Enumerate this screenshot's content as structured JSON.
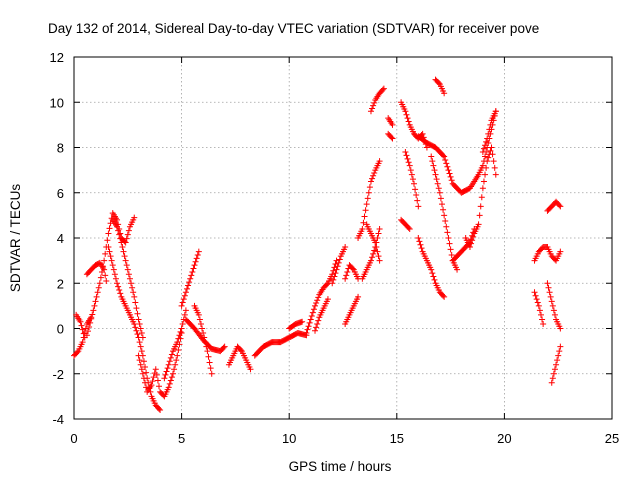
{
  "chart_data": {
    "type": "scatter",
    "title": "Day 132 of 2014, Sidereal Day-to-day VTEC variation (SDTVAR) for receiver pove",
    "xlabel": "GPS time / hours",
    "ylabel": "SDTVAR / TECUs",
    "xlim": [
      0,
      25
    ],
    "ylim": [
      -4,
      12
    ],
    "xticks": [
      0,
      5,
      10,
      15,
      20,
      25
    ],
    "yticks": [
      -4,
      -2,
      0,
      2,
      4,
      6,
      8,
      10,
      12
    ],
    "grid": true,
    "marker": "+",
    "marker_color": "#ff0000",
    "tracks": [
      {
        "x": [
          0.0,
          0.2,
          0.4,
          0.6,
          0.8
        ],
        "y": [
          -1.2,
          -1.0,
          -0.6,
          0.2,
          0.5
        ]
      },
      {
        "x": [
          0.1,
          0.3,
          0.5
        ],
        "y": [
          0.6,
          0.3,
          -0.4
        ]
      },
      {
        "x": [
          0.6,
          0.9,
          1.2,
          1.4,
          1.6,
          1.8,
          2.0,
          2.2,
          2.4,
          2.6,
          2.8
        ],
        "y": [
          -0.3,
          0.8,
          2.0,
          3.0,
          4.2,
          5.1,
          4.8,
          4.0,
          3.8,
          4.5,
          4.9
        ]
      },
      {
        "x": [
          0.6,
          0.8,
          1.0,
          1.2,
          1.4,
          1.5
        ],
        "y": [
          2.4,
          2.6,
          2.8,
          2.9,
          2.6,
          2.1
        ]
      },
      {
        "x": [
          1.6,
          1.8,
          2.0,
          2.2,
          2.4,
          2.6,
          2.8,
          3.0,
          3.2,
          3.4,
          3.6,
          3.8,
          4.0
        ],
        "y": [
          3.6,
          2.8,
          2.0,
          1.4,
          1.0,
          0.6,
          0.2,
          -0.4,
          -1.2,
          -2.2,
          -3.0,
          -3.4,
          -3.6
        ]
      },
      {
        "x": [
          1.8,
          2.0,
          2.2,
          2.4,
          2.6,
          2.8,
          3.0,
          3.2
        ],
        "y": [
          4.8,
          4.5,
          3.8,
          3.0,
          2.2,
          1.4,
          0.4,
          -0.4
        ]
      },
      {
        "x": [
          3.0,
          3.2,
          3.4,
          3.6,
          3.8,
          4.0,
          4.2,
          4.4,
          4.6,
          4.8,
          5.0
        ],
        "y": [
          -1.2,
          -2.0,
          -2.8,
          -2.5,
          -1.8,
          -2.8,
          -3.0,
          -2.6,
          -2.0,
          -1.2,
          -0.2
        ]
      },
      {
        "x": [
          4.2,
          4.4,
          4.6,
          4.8,
          5.0,
          5.2
        ],
        "y": [
          -2.2,
          -1.6,
          -1.0,
          -0.6,
          0.0,
          0.8
        ]
      },
      {
        "x": [
          5.0,
          5.2,
          5.4,
          5.6,
          5.8
        ],
        "y": [
          1.0,
          1.6,
          2.2,
          2.8,
          3.4
        ]
      },
      {
        "x": [
          5.6,
          5.8,
          6.0,
          6.2,
          6.4
        ],
        "y": [
          1.0,
          0.6,
          -0.2,
          -1.0,
          -2.0
        ]
      },
      {
        "x": [
          5.2,
          5.6,
          6.0,
          6.4,
          6.8,
          7.0
        ],
        "y": [
          0.4,
          0.0,
          -0.5,
          -0.9,
          -1.0,
          -0.8
        ]
      },
      {
        "x": [
          7.2,
          7.4,
          7.6,
          7.8,
          8.0,
          8.2
        ],
        "y": [
          -1.6,
          -1.2,
          -0.8,
          -1.0,
          -1.4,
          -1.8
        ]
      },
      {
        "x": [
          8.4,
          8.8,
          9.2,
          9.6,
          10.0,
          10.4,
          10.8
        ],
        "y": [
          -1.2,
          -0.8,
          -0.6,
          -0.6,
          -0.4,
          -0.2,
          -0.3
        ]
      },
      {
        "x": [
          10.0,
          10.3,
          10.6
        ],
        "y": [
          0.0,
          0.2,
          0.3
        ]
      },
      {
        "x": [
          10.8,
          11.0,
          11.2,
          11.4,
          11.6,
          11.8,
          12.0,
          12.2
        ],
        "y": [
          -0.2,
          0.4,
          1.0,
          1.5,
          1.8,
          2.0,
          2.4,
          3.0
        ]
      },
      {
        "x": [
          11.2,
          11.4,
          11.6,
          11.8
        ],
        "y": [
          -0.1,
          0.5,
          0.9,
          1.3
        ]
      },
      {
        "x": [
          12.0,
          12.2,
          12.4,
          12.6
        ],
        "y": [
          2.0,
          2.6,
          3.2,
          3.6
        ]
      },
      {
        "x": [
          12.6,
          12.8,
          13.0,
          13.2
        ],
        "y": [
          2.2,
          2.8,
          2.6,
          2.2
        ]
      },
      {
        "x": [
          12.6,
          12.8,
          13.0,
          13.2
        ],
        "y": [
          0.2,
          0.6,
          1.0,
          1.4
        ]
      },
      {
        "x": [
          13.2,
          13.4,
          13.6,
          13.8,
          14.0,
          14.2
        ],
        "y": [
          4.0,
          4.4,
          5.5,
          6.5,
          7.0,
          7.4
        ]
      },
      {
        "x": [
          13.4,
          13.6,
          13.8,
          14.0,
          14.2
        ],
        "y": [
          2.2,
          2.6,
          3.0,
          3.6,
          4.4
        ]
      },
      {
        "x": [
          13.6,
          13.8,
          14.0,
          14.2
        ],
        "y": [
          4.6,
          4.2,
          3.8,
          3.0
        ]
      },
      {
        "x": [
          13.8,
          14.0,
          14.2,
          14.4
        ],
        "y": [
          9.6,
          10.1,
          10.4,
          10.6
        ]
      },
      {
        "x": [
          14.6,
          14.8
        ],
        "y": [
          9.3,
          9.0
        ]
      },
      {
        "x": [
          14.6,
          14.8
        ],
        "y": [
          8.6,
          8.4
        ]
      },
      {
        "x": [
          15.2,
          15.4,
          15.6,
          15.8,
          16.0,
          16.2,
          16.4
        ],
        "y": [
          10.0,
          9.6,
          9.0,
          8.6,
          8.4,
          8.6,
          8.0
        ]
      },
      {
        "x": [
          15.4,
          15.6,
          15.8,
          16.0
        ],
        "y": [
          7.8,
          7.2,
          6.4,
          5.4
        ]
      },
      {
        "x": [
          15.2,
          15.4,
          15.6
        ],
        "y": [
          4.8,
          4.6,
          4.4
        ]
      },
      {
        "x": [
          16.0,
          16.2,
          16.4,
          16.6,
          16.8,
          17.0,
          17.2
        ],
        "y": [
          4.0,
          3.4,
          3.0,
          2.6,
          2.0,
          1.6,
          1.4
        ]
      },
      {
        "x": [
          16.8,
          17.0,
          17.2
        ],
        "y": [
          11.0,
          10.8,
          10.4
        ]
      },
      {
        "x": [
          16.6,
          16.8,
          17.0,
          17.2,
          17.4,
          17.6,
          17.8
        ],
        "y": [
          7.6,
          6.8,
          6.0,
          5.0,
          4.0,
          3.0,
          2.6
        ]
      },
      {
        "x": [
          16.0,
          16.4,
          16.8,
          17.2,
          17.6,
          18.0,
          18.4,
          18.8,
          19.0,
          19.2,
          19.4,
          19.6
        ],
        "y": [
          8.5,
          8.2,
          8.0,
          7.6,
          6.4,
          6.0,
          6.2,
          6.8,
          7.2,
          8.0,
          8.8,
          9.6
        ]
      },
      {
        "x": [
          17.6,
          17.8,
          18.0,
          18.2,
          18.4,
          18.6
        ],
        "y": [
          3.0,
          3.2,
          3.4,
          3.6,
          3.8,
          4.4
        ]
      },
      {
        "x": [
          18.2,
          18.4,
          18.6,
          18.8,
          19.0,
          19.2,
          19.4,
          19.6
        ],
        "y": [
          4.0,
          3.6,
          4.2,
          4.6,
          6.2,
          7.4,
          8.0,
          6.8
        ]
      },
      {
        "x": [
          19.0,
          19.2,
          19.4,
          19.6
        ],
        "y": [
          7.8,
          8.4,
          9.2,
          9.6
        ]
      },
      {
        "x": [
          21.4,
          21.6,
          21.8
        ],
        "y": [
          1.6,
          1.0,
          0.2
        ]
      },
      {
        "x": [
          21.4,
          21.6,
          21.8,
          22.0,
          22.2,
          22.4,
          22.6
        ],
        "y": [
          3.0,
          3.4,
          3.6,
          3.6,
          3.2,
          3.0,
          3.4
        ]
      },
      {
        "x": [
          22.0,
          22.2,
          22.4,
          22.6
        ],
        "y": [
          2.0,
          1.2,
          0.4,
          0.0
        ]
      },
      {
        "x": [
          22.0,
          22.2,
          22.4,
          22.6
        ],
        "y": [
          5.2,
          5.4,
          5.6,
          5.4
        ]
      },
      {
        "x": [
          22.2,
          22.4,
          22.6
        ],
        "y": [
          -2.4,
          -1.6,
          -0.8
        ]
      }
    ]
  }
}
